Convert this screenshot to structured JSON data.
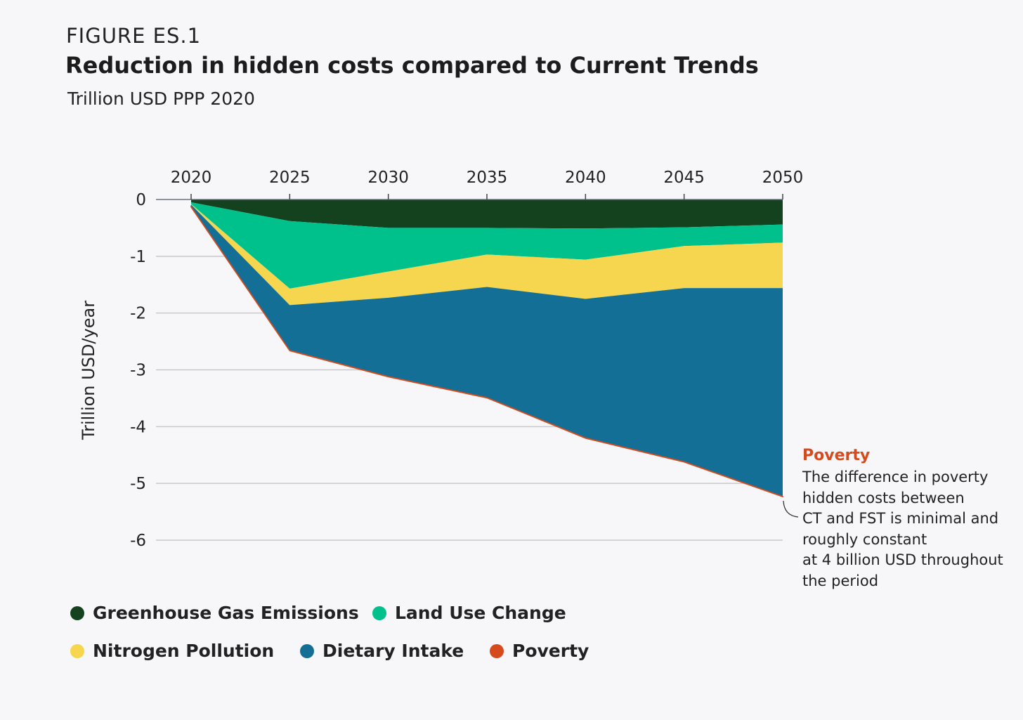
{
  "figure": {
    "label": "FIGURE ES.1",
    "title": "Reduction in hidden costs compared to Current Trends",
    "subtitle": "Trillion USD PPP 2020"
  },
  "annotation": {
    "title": "Poverty",
    "text": "The difference in poverty\nhidden costs between\nCT and FST is minimal and\nroughly constant\nat 4 billion USD throughout\nthe period"
  },
  "chart_data": {
    "type": "area",
    "stacked": true,
    "x": [
      2020,
      2025,
      2030,
      2035,
      2040,
      2045,
      2050
    ],
    "ylabel": "Trillion USD/year",
    "ylim": [
      -6,
      0
    ],
    "yticks": [
      "0",
      "-1",
      "-2",
      "-3",
      "-4",
      "-5",
      "-6"
    ],
    "xticks": [
      "2020",
      "2025",
      "2030",
      "2035",
      "2040",
      "2045",
      "2050"
    ],
    "x_axis_position": "top",
    "grid": "horizontal",
    "series": [
      {
        "name": "Greenhouse Gas Emissions",
        "color": "#14421f",
        "values": [
          -0.05,
          -0.38,
          -0.5,
          -0.5,
          -0.51,
          -0.49,
          -0.44
        ]
      },
      {
        "name": "Land Use Change",
        "color": "#00c08b",
        "values": [
          -0.03,
          -1.19,
          -0.77,
          -0.47,
          -0.55,
          -0.33,
          -0.32
        ]
      },
      {
        "name": "Nitrogen Pollution",
        "color": "#f5d64e",
        "values": [
          -0.01,
          -0.29,
          -0.46,
          -0.57,
          -0.69,
          -0.74,
          -0.8
        ]
      },
      {
        "name": "Dietary Intake",
        "color": "#136f95",
        "values": [
          -0.04,
          -0.8,
          -1.39,
          -1.95,
          -2.45,
          -3.06,
          -3.67
        ]
      },
      {
        "name": "Poverty",
        "color": "#d64b1e",
        "values": [
          -0.004,
          -0.004,
          -0.004,
          -0.004,
          -0.004,
          -0.004,
          -0.004
        ]
      }
    ],
    "legend_position": "bottom-left"
  },
  "legend": {
    "items": [
      {
        "label": "Greenhouse Gas Emissions",
        "color": "#14421f"
      },
      {
        "label": "Land Use Change",
        "color": "#00c08b"
      },
      {
        "label": "Nitrogen Pollution",
        "color": "#f5d64e"
      },
      {
        "label": "Dietary Intake",
        "color": "#136f95"
      },
      {
        "label": "Poverty",
        "color": "#d64b1e"
      }
    ]
  }
}
